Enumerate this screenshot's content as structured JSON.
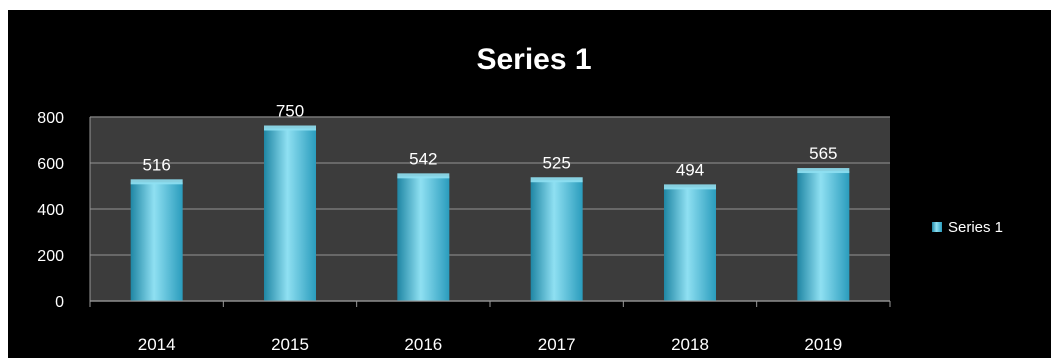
{
  "chart_data": {
    "type": "bar",
    "title": "Series 1",
    "categories": [
      "2014",
      "2015",
      "2016",
      "2017",
      "2018",
      "2019"
    ],
    "series": [
      {
        "name": "Series 1",
        "values": [
          516,
          750,
          542,
          525,
          494,
          565
        ]
      }
    ],
    "data_labels": [
      "516",
      "750",
      "542",
      "525",
      "494",
      "565"
    ],
    "ylim": [
      0,
      800
    ],
    "y_ticks": [
      "0",
      "200",
      "400",
      "600",
      "800"
    ],
    "grid": true,
    "legend": "right",
    "colors": {
      "background": "#000000",
      "plot_area": "#3c3c3c",
      "bar": "#3fb6d6",
      "bar_light": "#8fe0f2",
      "bar_dark": "#1f86a4",
      "text": "#ffffff",
      "grid": "#777777"
    }
  }
}
